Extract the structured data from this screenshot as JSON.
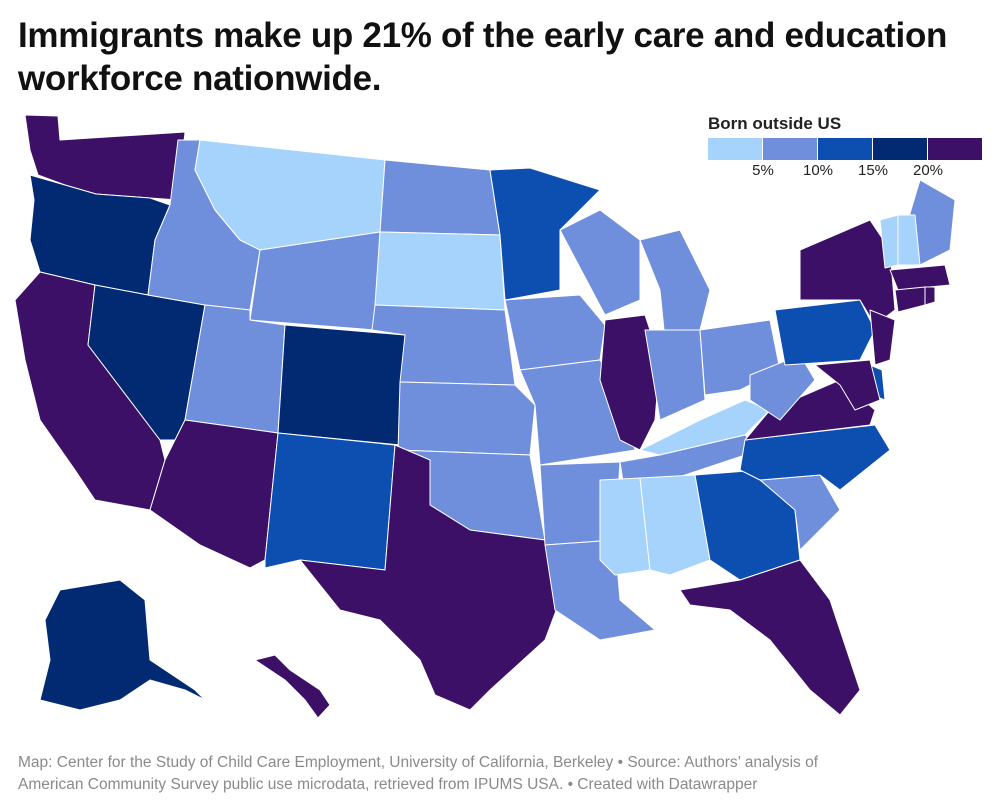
{
  "title": "Immigrants make up 21% of the early care and education workforce nationwide.",
  "legend": {
    "title": "Born outside US",
    "tick_labels": [
      "5%",
      "10%",
      "15%",
      "20%"
    ],
    "colors": [
      "#a6d3fb",
      "#6f8fdc",
      "#0d4fb0",
      "#022a73",
      "#3d1068"
    ]
  },
  "footer": {
    "line1": "Map: Center for the Study of Child Care Employment, University of California, Berkeley • Source: Authors’ analysis of",
    "line2": "American Community Survey public use microdata, retrieved from IPUMS USA. • Created with Datawrapper"
  },
  "chart_data": {
    "type": "choropleth",
    "bins": [
      "<5%",
      "5–10%",
      "10–15%",
      "15–20%",
      "≥20%"
    ],
    "states": {
      "WA": 4,
      "OR": 3,
      "CA": 4,
      "NV": 3,
      "ID": 1,
      "MT": 0,
      "WY": 1,
      "UT": 1,
      "AZ": 4,
      "CO": 3,
      "NM": 2,
      "ND": 1,
      "SD": 0,
      "NE": 1,
      "KS": 1,
      "OK": 1,
      "TX": 4,
      "MN": 2,
      "IA": 1,
      "MO": 1,
      "AR": 1,
      "LA": 1,
      "WI": 1,
      "IL": 4,
      "MI": 1,
      "IN": 1,
      "OH": 1,
      "KY": 0,
      "TN": 1,
      "MS": 0,
      "AL": 0,
      "GA": 2,
      "FL": 4,
      "SC": 1,
      "NC": 2,
      "VA": 4,
      "WV": 1,
      "PA": 2,
      "NY": 4,
      "NJ": 4,
      "DE": 2,
      "MD": 4,
      "ME": 1,
      "VT": 0,
      "NH": 0,
      "MA": 4,
      "CT": 4,
      "RI": 4,
      "AK": 3,
      "HI": 4
    }
  }
}
